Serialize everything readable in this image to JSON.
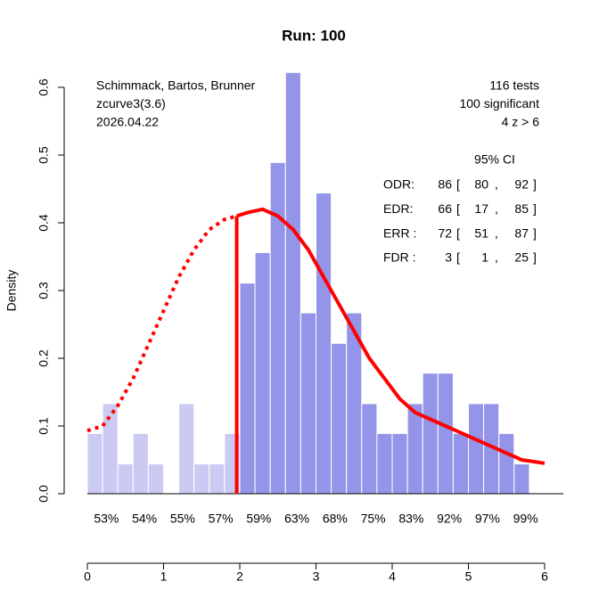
{
  "chart_data": {
    "type": "histogram",
    "title": "Run: 100",
    "y_label": "Density",
    "bins": [
      0,
      0.2,
      0.4,
      0.6,
      0.8,
      1.0,
      1.2,
      1.4,
      1.6,
      1.8,
      2.0,
      2.2,
      2.4,
      2.6,
      2.8,
      3.0,
      3.2,
      3.4,
      3.6,
      3.8,
      4.0,
      4.2,
      4.4,
      4.6,
      4.8,
      5.0,
      5.2,
      5.4,
      5.6,
      5.8
    ],
    "values": [
      0.089,
      0.133,
      0.044,
      0.089,
      0.044,
      0,
      0.133,
      0.044,
      0.044,
      0.089,
      0.311,
      0.356,
      0.489,
      0.622,
      0.267,
      0.444,
      0.222,
      0.267,
      0.133,
      0.089,
      0.089,
      0.133,
      0.178,
      0.178,
      0.089,
      0.133,
      0.133,
      0.089,
      0.044
    ],
    "colors": {
      "nonsignificant": "#cacaf3",
      "significant": "#9494e8"
    },
    "curves": [
      {
        "color": "#ff0000",
        "dashed": true,
        "x": [
          0,
          0.2,
          0.4,
          0.6,
          0.8,
          1.0,
          1.2,
          1.4,
          1.6,
          1.8,
          1.96
        ],
        "y": [
          0.093,
          0.1,
          0.13,
          0.17,
          0.22,
          0.27,
          0.32,
          0.36,
          0.39,
          0.405,
          0.41
        ]
      },
      {
        "color": "#ff0000",
        "dashed": false,
        "x": [
          1.96,
          2.1,
          2.3,
          2.5,
          2.7,
          2.9,
          3.1,
          3.3,
          3.5,
          3.7,
          3.9,
          4.1,
          4.3,
          4.5,
          4.7,
          4.9,
          5.1,
          5.3,
          5.5,
          5.7,
          6.0
        ],
        "y": [
          0.41,
          0.415,
          0.42,
          0.41,
          0.39,
          0.36,
          0.32,
          0.28,
          0.24,
          0.2,
          0.17,
          0.14,
          0.12,
          0.11,
          0.1,
          0.09,
          0.08,
          0.07,
          0.06,
          0.05,
          0.045
        ]
      }
    ],
    "xlim": [
      0,
      6
    ],
    "xticks": [
      0,
      1,
      2,
      3,
      4,
      5,
      6
    ],
    "ylim": [
      0,
      0.6
    ],
    "yticks": [
      {
        "value": 0,
        "label": "0.0"
      },
      0.1,
      0.2,
      0.3,
      0.4,
      0.5,
      0.6
    ],
    "x2ticks": [
      {
        "value": 0.25,
        "label": "53%"
      },
      {
        "value": 0.75,
        "label": "54%"
      },
      {
        "value": 1.25,
        "label": "55%"
      },
      {
        "value": 1.75,
        "label": "57%"
      },
      {
        "value": 2.25,
        "label": "59%"
      },
      {
        "value": 2.75,
        "label": "63%"
      },
      {
        "value": 3.25,
        "label": "68%"
      },
      {
        "value": 3.75,
        "label": "75%"
      },
      {
        "value": 4.25,
        "label": "83%"
      },
      {
        "value": 4.75,
        "label": "92%"
      },
      {
        "value": 5.25,
        "label": "97%"
      },
      {
        "value": 5.75,
        "label": "99%"
      }
    ],
    "notes_left": [
      "Schimmack, Bartos, Brunner",
      "zcurve3(3.6)",
      "2026.04.22"
    ],
    "notes_right": [
      "116 tests",
      "100 significant",
      "4 z > 6"
    ],
    "ci_table": {
      "header": "95% CI",
      "delimiters": [
        "[",
        ",",
        "]"
      ],
      "rows": [
        {
          "label": "ODR:",
          "estimate": 86,
          "lower": 80,
          "upper": 92
        },
        {
          "label": "EDR:",
          "estimate": 66,
          "lower": 17,
          "upper": 85
        },
        {
          "label": "ERR :",
          "estimate": 72,
          "lower": 51,
          "upper": 87
        },
        {
          "label": "FDR :",
          "estimate": 3,
          "lower": 1,
          "upper": 25
        }
      ]
    }
  }
}
